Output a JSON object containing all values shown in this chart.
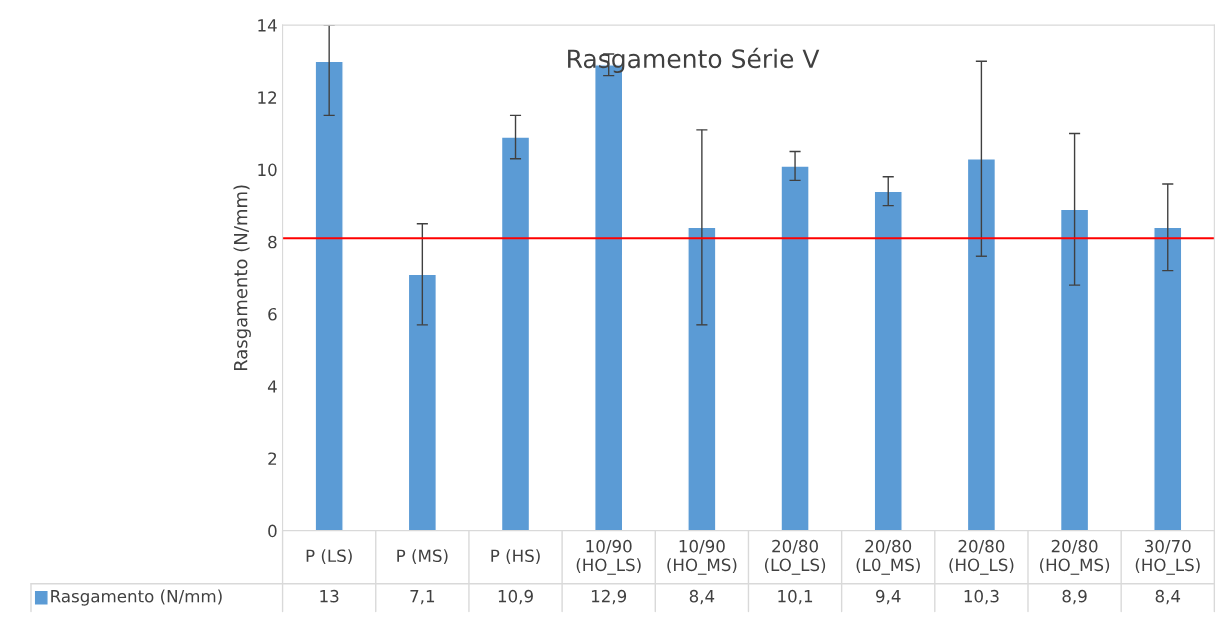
{
  "chart_data": {
    "type": "bar",
    "title": "Rasgamento Série V",
    "ylabel": "Rasgamento (N/mm)",
    "categories": [
      "P (LS)",
      "P (MS)",
      "P (HS)",
      "10/90\n(HO_LS)",
      "10/90\n(HO_MS)",
      "20/80\n(LO_LS)",
      "20/80\n(L0_MS)",
      "20/80\n(HO_LS)",
      "20/80\n(HO_MS)",
      "30/70\n(HO_LS)"
    ],
    "series": [
      {
        "name": "Rasgamento (N/mm)",
        "color": "#5b9bd5",
        "values": [
          13,
          7.1,
          10.9,
          12.9,
          8.4,
          10.1,
          9.4,
          10.3,
          8.9,
          8.4
        ],
        "errors": [
          [
            11.5,
            14
          ],
          [
            5.7,
            8.5
          ],
          [
            10.3,
            11.5
          ],
          [
            12.6,
            13.2
          ],
          [
            5.7,
            11.1
          ],
          [
            9.7,
            10.5
          ],
          [
            9.0,
            9.8
          ],
          [
            7.6,
            13.0
          ],
          [
            6.8,
            11.0
          ],
          [
            7.2,
            9.6
          ]
        ]
      }
    ],
    "value_labels": [
      "13",
      "7,1",
      "10,9",
      "12,9",
      "8,4",
      "10,1",
      "9,4",
      "10,3",
      "8,9",
      "8,4"
    ],
    "ref_lines": [
      {
        "axis": "y",
        "value": 8.1,
        "color": "#ff0000"
      }
    ],
    "ylim": [
      0,
      14
    ],
    "yticks": [
      0,
      2,
      4,
      6,
      8,
      10,
      12,
      14
    ],
    "grid": false,
    "legend": "bottom"
  }
}
